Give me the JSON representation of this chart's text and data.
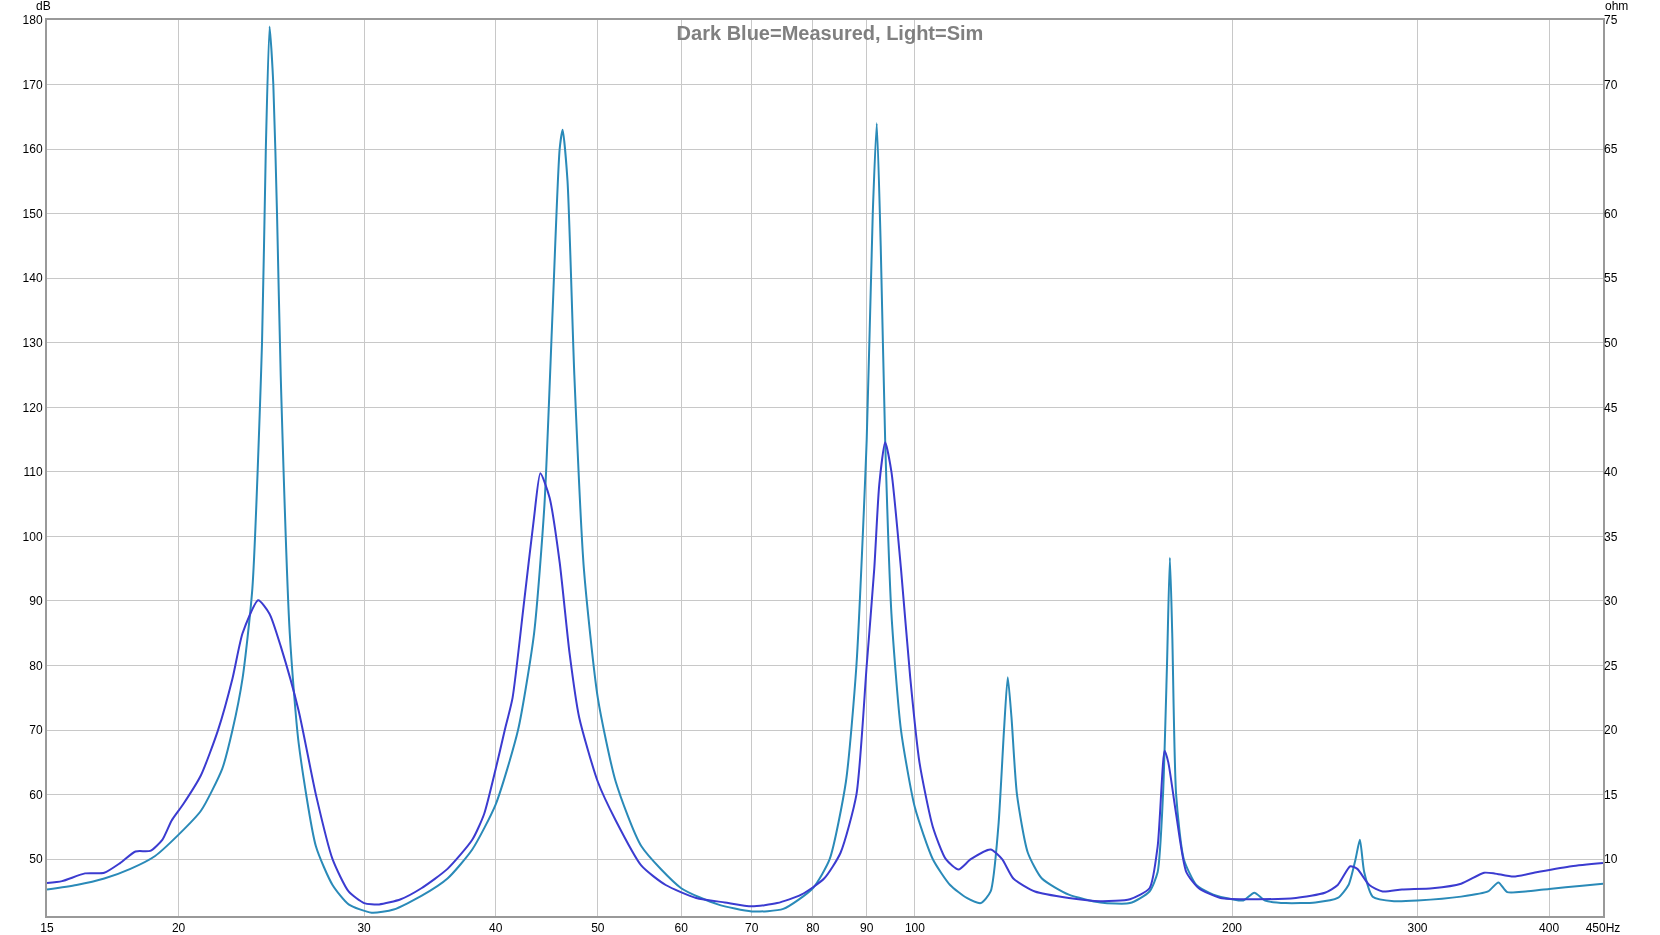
{
  "chart_data": {
    "type": "line",
    "title": "Dark Blue=Measured, Light=Sim",
    "ylabel": "dB",
    "y2label": "ohm",
    "log": "x",
    "grid": true,
    "marker": "none",
    "line_style": "solid",
    "xlim": [
      15,
      450
    ],
    "xticks": [
      15,
      20,
      30,
      40,
      50,
      60,
      70,
      80,
      90,
      100,
      200,
      300,
      400,
      {
        "value": 450,
        "label": "450Hz"
      }
    ],
    "ylim": [
      41.2,
      180
    ],
    "yticks": [
      50,
      60,
      70,
      80,
      90,
      100,
      110,
      120,
      130,
      140,
      150,
      160,
      170,
      180
    ],
    "y2lim": [
      5.6,
      75
    ],
    "y2ticks": [
      10,
      15,
      20,
      25,
      30,
      35,
      40,
      45,
      50,
      55,
      60,
      65,
      70,
      75
    ],
    "series": [
      {
        "color": "#2a8ab8",
        "x": [
          15,
          16,
          17,
          18,
          19,
          20,
          21,
          22,
          22.5,
          23,
          23.5,
          24,
          24.2,
          24.4,
          24.6,
          24.8,
          25,
          25.5,
          26,
          27,
          28,
          29,
          30.5,
          32,
          34,
          36,
          38,
          40,
          42,
          43.5,
          44.5,
          45.3,
          46,
          46.3,
          46.8,
          47.5,
          48.5,
          50,
          52,
          55,
          60,
          65,
          70,
          75,
          80,
          83,
          86,
          88,
          90,
          91.2,
          92,
          92.8,
          93.7,
          95,
          97,
          100,
          104,
          108,
          112,
          115.5,
          118,
          120,
          121.5,
          122.5,
          123.5,
          125,
          128,
          132,
          140,
          150,
          160,
          167,
          170,
          172,
          173.5,
          174.6,
          175.5,
          177,
          180,
          185,
          192,
          200,
          205,
          210,
          215,
          225,
          240,
          252,
          258,
          262,
          264.5,
          267,
          272,
          285,
          300,
          330,
          350,
          358,
          365,
          380,
          400,
          430,
          450
        ],
        "values": [
          45.3,
          46,
          47,
          48.5,
          50.5,
          53.8,
          57.5,
          64,
          70,
          78,
          92,
          130,
          160,
          179,
          170,
          150,
          125,
          85,
          68,
          52,
          46,
          43,
          41.7,
          42.2,
          44.3,
          47,
          51.5,
          58.5,
          70,
          85,
          105,
          135,
          160,
          163,
          155,
          125,
          95,
          75,
          62,
          52,
          45.5,
          43,
          41.9,
          42.3,
          45.5,
          50,
          62,
          80,
          115,
          150,
          164,
          145,
          115,
          88,
          70,
          58,
          50,
          46,
          44,
          43.2,
          45,
          55,
          70,
          78.2,
          72,
          60,
          51,
          47,
          44.5,
          43.3,
          43.2,
          45,
          48,
          60,
          80,
          96.7,
          85,
          60,
          50,
          46,
          44.5,
          43.8,
          43.6,
          44.8,
          43.6,
          43.2,
          43.3,
          44,
          46,
          50,
          53,
          48,
          44.2,
          43.5,
          43.6,
          44.2,
          45,
          46.4,
          44.9,
          45,
          45.4,
          45.9,
          46.2
        ]
      },
      {
        "color": "#3b3bd0",
        "x": [
          15,
          15.5,
          16.3,
          17,
          17.6,
          18.2,
          18.8,
          19.3,
          19.7,
          20.2,
          21,
          21.8,
          22.5,
          23,
          23.8,
          24.4,
          25,
          26,
          27,
          28,
          29,
          30,
          31,
          32.5,
          34,
          36,
          38,
          39,
          40,
          40.8,
          41.5,
          42.5,
          43.5,
          44.1,
          45,
          46,
          47,
          48,
          50,
          52,
          55,
          58,
          62,
          66,
          70,
          74,
          78,
          82,
          85,
          88,
          90,
          91.5,
          92.5,
          93.7,
          95,
          97,
          99,
          101,
          104,
          107,
          110,
          113,
          118,
          121,
          124,
          130,
          140,
          150,
          160,
          167,
          170,
          172.6,
          174,
          177,
          181,
          186,
          195,
          210,
          230,
          245,
          252,
          259,
          263,
          270,
          278,
          290,
          310,
          330,
          347,
          355,
          370,
          390,
          420,
          450
        ],
        "values": [
          46.3,
          46.6,
          47.8,
          47.9,
          49.4,
          51.2,
          51.3,
          53,
          56,
          58.5,
          63,
          70,
          78,
          85,
          90.1,
          88,
          83,
          73,
          60,
          50,
          45,
          43.2,
          43,
          43.8,
          45.5,
          48.5,
          53,
          57,
          64,
          70,
          75,
          89,
          103,
          109.8,
          106,
          96,
          82,
          72,
          62,
          56,
          49,
          46,
          44,
          43.3,
          42.7,
          43.2,
          44.5,
          47,
          51,
          60,
          80,
          95,
          108,
          114.6,
          110,
          95,
          78,
          65,
          55,
          50,
          48.4,
          50,
          51.5,
          50,
          47,
          45,
          44,
          43.5,
          43.8,
          45.5,
          52,
          66.8,
          65,
          57,
          48,
          45.5,
          44,
          43.8,
          44,
          44.8,
          46,
          48.9,
          48.5,
          46,
          45,
          45.3,
          45.5,
          46.2,
          47.9,
          47.8,
          47.3,
          48,
          48.9,
          49.4
        ]
      }
    ]
  }
}
